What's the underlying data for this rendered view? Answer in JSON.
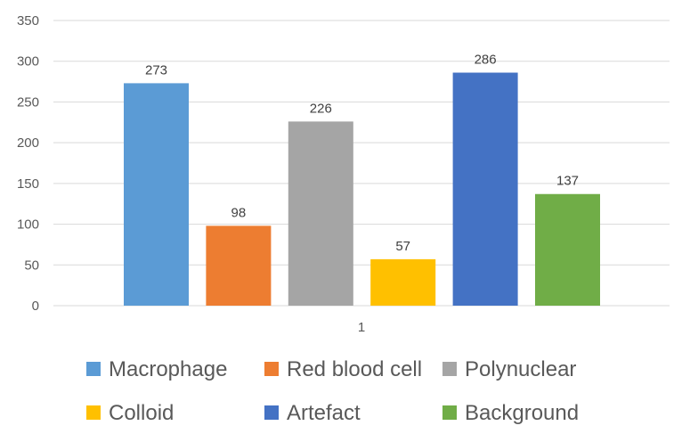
{
  "chart_data": {
    "type": "bar",
    "categories": [
      "1"
    ],
    "series": [
      {
        "name": "Macrophage",
        "values": [
          273
        ],
        "color": "#5b9bd5"
      },
      {
        "name": "Red blood cell",
        "values": [
          98
        ],
        "color": "#ed7d31"
      },
      {
        "name": "Polynuclear",
        "values": [
          226
        ],
        "color": "#a5a5a5"
      },
      {
        "name": "Colloid",
        "values": [
          57
        ],
        "color": "#ffc000"
      },
      {
        "name": "Artefact",
        "values": [
          286
        ],
        "color": "#4472c4"
      },
      {
        "name": "Background",
        "values": [
          137
        ],
        "color": "#70ad47"
      }
    ],
    "ylim": [
      0,
      350
    ],
    "yticks": [
      0,
      50,
      100,
      150,
      200,
      250,
      300,
      350
    ],
    "grid": true,
    "legend": "bottom",
    "data_labels": true
  }
}
